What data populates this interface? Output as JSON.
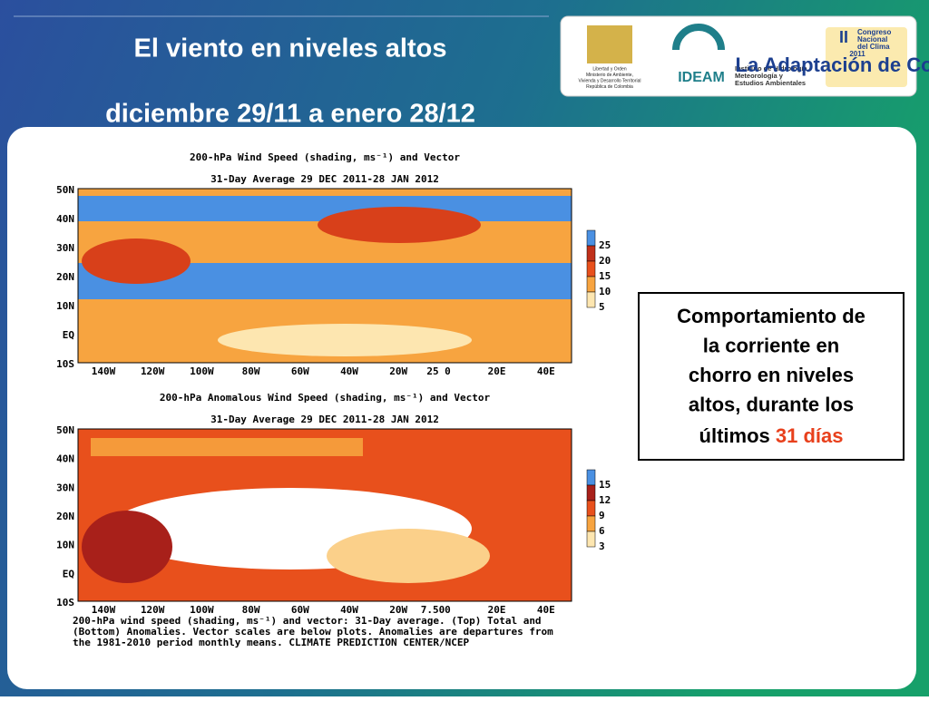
{
  "header": {
    "title_line1": "El viento en niveles altos",
    "title_line2": "diciembre 29/11 a enero 28/12"
  },
  "logos": {
    "ministry": [
      "Libertad y Orden",
      "Ministerio de Ambiente,",
      "Vivienda y Desarrollo Territorial",
      "República de Colombia"
    ],
    "ideam": "IDEAM",
    "ideam_full": [
      "Instituto de Hidrología,",
      "Meteorología y",
      "Estudios Ambientales"
    ],
    "congress": [
      "II",
      "Congreso",
      "Nacional",
      "del Clima",
      "2011",
      "La Adaptación de Colombia"
    ]
  },
  "maps": [
    {
      "title": "200-hPa Wind Speed (shading, ms⁻¹) and Vector",
      "subtitle": "31-Day Average 29 DEC 2011-28 JAN 2012",
      "lat_labels": [
        "50N",
        "40N",
        "30N",
        "20N",
        "10N",
        "EQ",
        "10S"
      ],
      "lon_labels": [
        "140W",
        "120W",
        "100W",
        "80W",
        "60W",
        "40W",
        "20W",
        "0",
        "20E",
        "40E"
      ],
      "vector_scale": "25",
      "colorbar": [
        25,
        20,
        15,
        10,
        5
      ]
    },
    {
      "title": "200-hPa Anomalous Wind Speed (shading, ms⁻¹) and Vector",
      "subtitle": "31-Day Average 29 DEC 2011-28 JAN 2012",
      "lat_labels": [
        "50N",
        "40N",
        "30N",
        "20N",
        "10N",
        "EQ",
        "10S"
      ],
      "lon_labels": [
        "140W",
        "120W",
        "100W",
        "80W",
        "60W",
        "40W",
        "20W",
        "0",
        "20E",
        "40E"
      ],
      "vector_scale": "7.50",
      "colorbar": [
        15,
        12,
        9,
        6,
        3
      ]
    }
  ],
  "caption": [
    "200-hPa wind speed (shading, ms⁻¹) and vector: 31-Day average. (Top) Total and",
    "(Bottom) Anomalies. Vector scales are below plots. Anomalies are departures from",
    "the 1981-2010 period monthly means. CLIMATE PREDICTION CENTER/NCEP"
  ],
  "callout": {
    "lines": [
      "Comportamiento de",
      "la corriente en",
      "chorro en niveles",
      "altos, durante los"
    ],
    "last_prefix": "últimos",
    "highlight": "31 días"
  }
}
